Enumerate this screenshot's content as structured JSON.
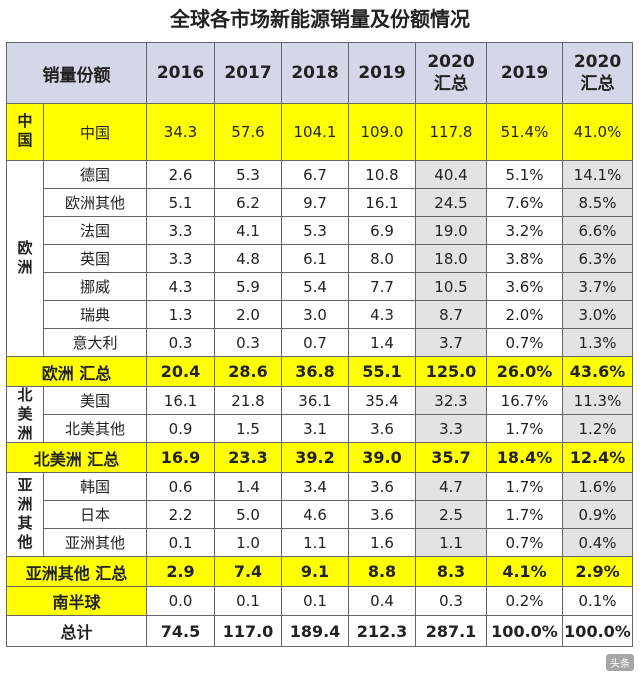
{
  "title": "全球各市场新能源销量及份额情况",
  "header": {
    "corner": "销量份额",
    "years": [
      "2016",
      "2017",
      "2018",
      "2019",
      "2020\n汇总",
      "2019",
      "2020\n汇总"
    ]
  },
  "regions": {
    "china": "中国",
    "europe": "欧洲",
    "north_america": "北美洲",
    "asia_other": "亚洲其他"
  },
  "chart_data": {
    "type": "table",
    "title": "全球各市场新能源销量及份额情况",
    "columns": [
      "2016",
      "2017",
      "2018",
      "2019",
      "2020 汇总",
      "2019",
      "2020 汇总"
    ],
    "rows": [
      {
        "label": "中国",
        "values": [
          "34.3",
          "57.6",
          "104.1",
          "109.0",
          "117.8",
          "51.4%",
          "41.0%"
        ]
      },
      {
        "label": "德国",
        "values": [
          "2.6",
          "5.3",
          "6.7",
          "10.8",
          "40.4",
          "5.1%",
          "14.1%"
        ]
      },
      {
        "label": "欧洲其他",
        "values": [
          "5.1",
          "6.2",
          "9.7",
          "16.1",
          "24.5",
          "7.6%",
          "8.5%"
        ]
      },
      {
        "label": "法国",
        "values": [
          "3.3",
          "4.1",
          "5.3",
          "6.9",
          "19.0",
          "3.2%",
          "6.6%"
        ]
      },
      {
        "label": "英国",
        "values": [
          "3.3",
          "4.8",
          "6.1",
          "8.0",
          "18.0",
          "3.8%",
          "6.3%"
        ]
      },
      {
        "label": "挪威",
        "values": [
          "4.3",
          "5.9",
          "5.4",
          "7.7",
          "10.5",
          "3.6%",
          "3.7%"
        ]
      },
      {
        "label": "瑞典",
        "values": [
          "1.3",
          "2.0",
          "3.0",
          "4.3",
          "8.7",
          "2.0%",
          "3.0%"
        ]
      },
      {
        "label": "意大利",
        "values": [
          "0.3",
          "0.3",
          "0.7",
          "1.4",
          "3.7",
          "0.7%",
          "1.3%"
        ]
      },
      {
        "label": "欧洲 汇总",
        "values": [
          "20.4",
          "28.6",
          "36.8",
          "55.1",
          "125.0",
          "26.0%",
          "43.6%"
        ]
      },
      {
        "label": "美国",
        "values": [
          "16.1",
          "21.8",
          "36.1",
          "35.4",
          "32.3",
          "16.7%",
          "11.3%"
        ]
      },
      {
        "label": "北美其他",
        "values": [
          "0.9",
          "1.5",
          "3.1",
          "3.6",
          "3.3",
          "1.7%",
          "1.2%"
        ]
      },
      {
        "label": "北美洲 汇总",
        "values": [
          "16.9",
          "23.3",
          "39.2",
          "39.0",
          "35.7",
          "18.4%",
          "12.4%"
        ]
      },
      {
        "label": "韩国",
        "values": [
          "0.6",
          "1.4",
          "3.4",
          "3.6",
          "4.7",
          "1.7%",
          "1.6%"
        ]
      },
      {
        "label": "日本",
        "values": [
          "2.2",
          "5.0",
          "4.6",
          "3.6",
          "2.5",
          "1.7%",
          "0.9%"
        ]
      },
      {
        "label": "亚洲其他",
        "values": [
          "0.1",
          "1.0",
          "1.1",
          "1.6",
          "1.1",
          "0.7%",
          "0.4%"
        ]
      },
      {
        "label": "亚洲其他 汇总",
        "values": [
          "2.9",
          "7.4",
          "9.1",
          "8.8",
          "8.3",
          "4.1%",
          "2.9%"
        ]
      },
      {
        "label": "南半球",
        "values": [
          "0.0",
          "0.1",
          "0.1",
          "0.4",
          "0.3",
          "0.2%",
          "0.1%"
        ]
      },
      {
        "label": "总计",
        "values": [
          "74.5",
          "117.0",
          "189.4",
          "212.3",
          "287.1",
          "100.0%",
          "100.0%"
        ]
      }
    ]
  },
  "colors": {
    "highlight": "#ffff00",
    "header_bg": "#d4d7e8",
    "shaded_column": "#e3e3e3"
  }
}
